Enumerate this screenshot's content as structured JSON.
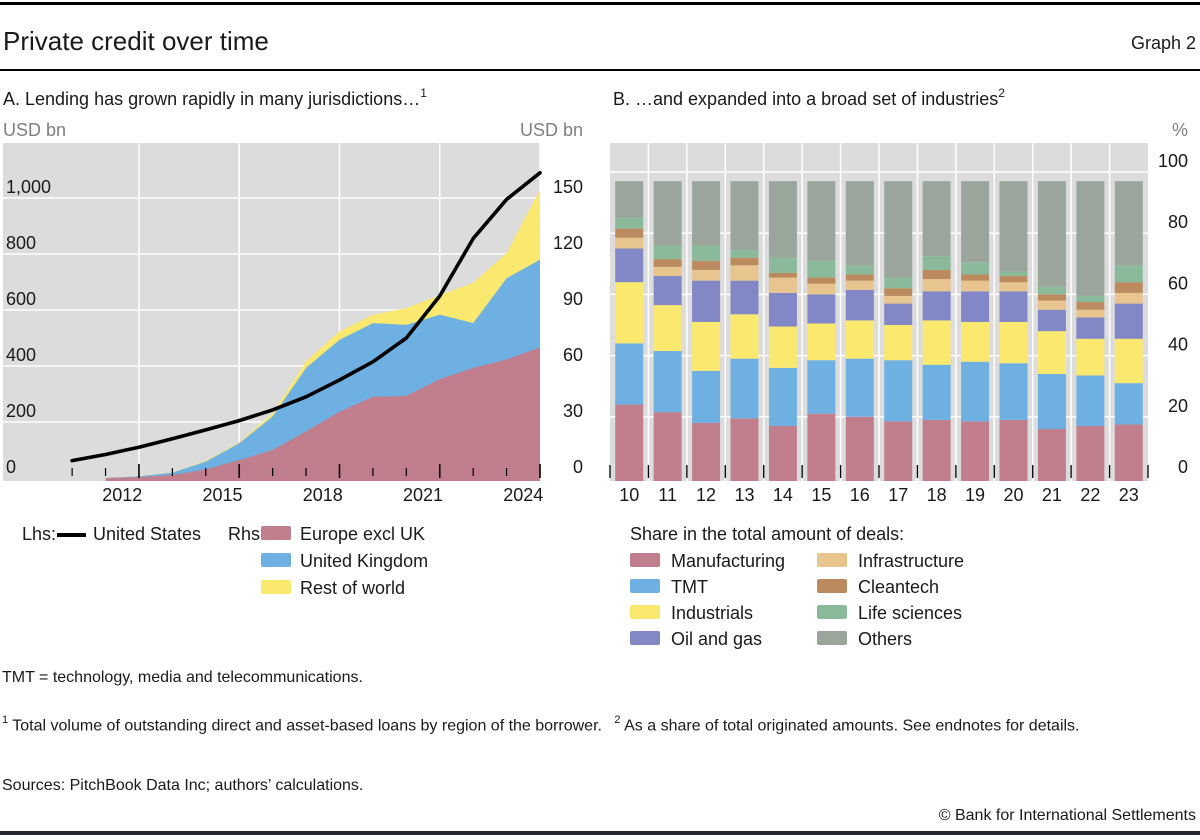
{
  "header": {
    "title": "Private credit over time",
    "graph_label": "Graph 2"
  },
  "panel_a": {
    "title": "A. Lending has grown rapidly in many jurisdictions…",
    "title_sup": "1",
    "left_unit": "USD bn",
    "right_unit": "USD bn",
    "legend": {
      "lhs_label": "Lhs:",
      "lhs_series": "United States",
      "rhs_label": "Rhs:",
      "items": [
        {
          "label": "Europe excl UK",
          "color": "#c17f8e"
        },
        {
          "label": "United Kingdom",
          "color": "#6fb0e2"
        },
        {
          "label": "Rest of world",
          "color": "#fae96e"
        }
      ]
    }
  },
  "panel_b": {
    "title": "B. …and expanded into a broad set of industries",
    "title_sup": "2",
    "right_unit": "%",
    "legend": {
      "header": "Share in the total amount of deals:",
      "col1": [
        {
          "label": "Manufacturing",
          "color": "#c17f8e"
        },
        {
          "label": "TMT",
          "color": "#6fb0e2"
        },
        {
          "label": "Industrials",
          "color": "#fae96e"
        },
        {
          "label": "Oil and gas",
          "color": "#8287c6"
        }
      ],
      "col2": [
        {
          "label": "Infrastructure",
          "color": "#e8c48e"
        },
        {
          "label": "Cleantech",
          "color": "#bc8a5f"
        },
        {
          "label": "Life sciences",
          "color": "#8bba9b"
        },
        {
          "label": "Others",
          "color": "#9aa59b"
        }
      ]
    }
  },
  "footnotes": {
    "tmt_note": "TMT = technology, media and telecommunications.",
    "fn1_sup": "1",
    "fn1_text": "Total volume of outstanding direct and asset-based loans by region of the borrower.",
    "fn2_sup": "2",
    "fn2_text": "As a share of total originated amounts. See endnotes for details.",
    "sources": "Sources: PitchBook Data Inc; authors’ calculations.",
    "copyright": "© Bank for International Settlements"
  },
  "chart_data": [
    {
      "type": "line+area",
      "title": "A. Lending has grown rapidly in many jurisdictions…",
      "lhs_axis": {
        "unit": "USD bn",
        "ticks": [
          0,
          200,
          400,
          600,
          800,
          1000
        ],
        "range": [
          0,
          1200
        ]
      },
      "rhs_axis": {
        "unit": "USD bn",
        "ticks": [
          0,
          30,
          60,
          90,
          120,
          150
        ],
        "range": [
          0,
          180
        ]
      },
      "x_axis": {
        "labeled_years": [
          2012,
          2015,
          2018,
          2021,
          2024
        ],
        "minor_tick_start": 2010,
        "minor_tick_end": 2024
      },
      "line": {
        "name": "United States",
        "axis": "lhs",
        "color": "#000000",
        "years": [
          2010,
          2011,
          2012,
          2013,
          2014,
          2015,
          2016,
          2017,
          2018,
          2019,
          2020,
          2021,
          2022,
          2023,
          2024
        ],
        "values": [
          62,
          84,
          110,
          140,
          172,
          205,
          243,
          290,
          350,
          415,
          500,
          650,
          855,
          995,
          1090
        ]
      },
      "areas": {
        "axis": "rhs",
        "years": [
          2011,
          2012,
          2013,
          2014,
          2015,
          2016,
          2017,
          2018,
          2019,
          2020,
          2021,
          2022,
          2023,
          2024
        ],
        "series": [
          {
            "name": "Europe excl UK",
            "color": "#c17f8e",
            "values": [
              0,
              0.5,
              1.6,
              4.6,
              9.6,
              15,
              25,
              35.5,
              43.5,
              44,
              53,
              59,
              63.5,
              70
            ]
          },
          {
            "name": "United Kingdom",
            "color": "#6fb0e2",
            "values": [
              0,
              0.4,
              1.3,
              4.2,
              9,
              18,
              34,
              38.5,
              39.5,
              38,
              34.5,
              24,
              43.5,
              47
            ]
          },
          {
            "name": "Rest of world",
            "color": "#fae96e",
            "values": [
              0,
              0,
              0.1,
              0.4,
              0.5,
              1.7,
              3.5,
              4.5,
              4.4,
              9,
              10.5,
              21.5,
              13.5,
              37.5
            ]
          }
        ]
      }
    },
    {
      "type": "stacked-bar",
      "title": "B. …and expanded into a broad set of industries",
      "ylabel": "%",
      "ylim": [
        0,
        110
      ],
      "yticks": [
        0,
        20,
        40,
        60,
        80,
        100
      ],
      "categories": [
        "10",
        "11",
        "12",
        "13",
        "14",
        "15",
        "16",
        "17",
        "18",
        "19",
        "20",
        "21",
        "22",
        "23"
      ],
      "series": [
        {
          "name": "Manufacturing",
          "color": "#c17f8e",
          "values": [
            24,
            21.5,
            18,
            19.5,
            17,
            21,
            20,
            18.5,
            19,
            18.5,
            19,
            16,
            17,
            17.5
          ]
        },
        {
          "name": "TMT",
          "color": "#6fb0e2",
          "values": [
            20,
            20,
            17,
            19.5,
            19,
            17.5,
            19,
            20,
            18,
            19.5,
            18.5,
            18,
            16.5,
            13.5
          ]
        },
        {
          "name": "Industrials",
          "color": "#fae96e",
          "values": [
            20,
            15,
            16,
            14.5,
            13.5,
            12,
            12.5,
            11.5,
            14.5,
            13,
            13.5,
            14,
            12,
            14.5
          ]
        },
        {
          "name": "Oil and gas",
          "color": "#8287c6",
          "values": [
            11,
            9.5,
            13.5,
            11,
            11,
            9.5,
            10,
            7,
            9.5,
            10,
            10,
            7,
            7,
            11.5
          ]
        },
        {
          "name": "Infrastructure",
          "color": "#e8c48e",
          "values": [
            3.5,
            3,
            3.5,
            5,
            5,
            3.5,
            3,
            2.5,
            4,
            3.5,
            3,
            3,
            2.5,
            3.5
          ]
        },
        {
          "name": "Cleantech",
          "color": "#bc8a5f",
          "values": [
            3,
            2.5,
            3,
            2.5,
            1.5,
            2,
            2,
            2.5,
            3,
            2,
            2,
            2,
            2.5,
            3.5
          ]
        },
        {
          "name": "Life sciences",
          "color": "#8bba9b",
          "values": [
            3.5,
            4.5,
            5,
            2.5,
            5,
            5.5,
            3,
            3.5,
            4.5,
            4,
            1.5,
            2.5,
            2,
            5.5
          ]
        },
        {
          "name": "Others",
          "color": "#9aa59b",
          "values": [
            12,
            21,
            21,
            22.5,
            25,
            26,
            27.5,
            31.5,
            24.5,
            26.5,
            29.5,
            34.5,
            37.5,
            27.5
          ]
        }
      ]
    }
  ]
}
